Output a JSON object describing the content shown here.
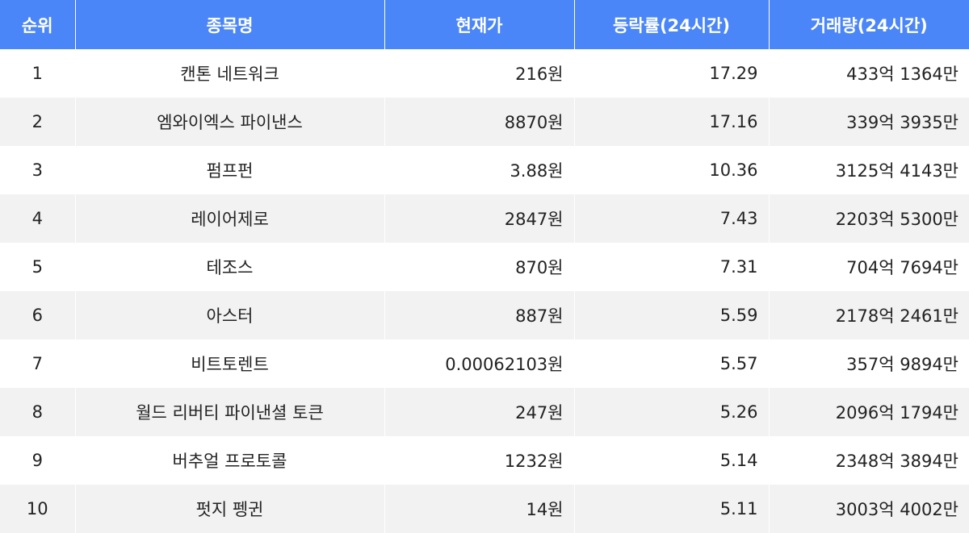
{
  "chart_data": {
    "type": "table",
    "columns": [
      "순위",
      "종목명",
      "현재가",
      "등락률(24시간)",
      "거래량(24시간)"
    ],
    "rows": [
      {
        "rank": "1",
        "name": "캔톤 네트워크",
        "price": "216원",
        "change": "17.29",
        "volume": "433억 1364만"
      },
      {
        "rank": "2",
        "name": "엠와이엑스 파이낸스",
        "price": "8870원",
        "change": "17.16",
        "volume": "339억 3935만"
      },
      {
        "rank": "3",
        "name": "펌프펀",
        "price": "3.88원",
        "change": "10.36",
        "volume": "3125억 4143만"
      },
      {
        "rank": "4",
        "name": "레이어제로",
        "price": "2847원",
        "change": "7.43",
        "volume": "2203억 5300만"
      },
      {
        "rank": "5",
        "name": "테조스",
        "price": "870원",
        "change": "7.31",
        "volume": "704억 7694만"
      },
      {
        "rank": "6",
        "name": "아스터",
        "price": "887원",
        "change": "5.59",
        "volume": "2178억 2461만"
      },
      {
        "rank": "7",
        "name": "비트토렌트",
        "price": "0.00062103원",
        "change": "5.57",
        "volume": "357억 9894만"
      },
      {
        "rank": "8",
        "name": "월드 리버티 파이낸셜 토큰",
        "price": "247원",
        "change": "5.26",
        "volume": "2096억 1794만"
      },
      {
        "rank": "9",
        "name": "버추얼 프로토콜",
        "price": "1232원",
        "change": "5.14",
        "volume": "2348억 3894만"
      },
      {
        "rank": "10",
        "name": "펏지 펭귄",
        "price": "14원",
        "change": "5.11",
        "volume": "3003억 4002만"
      }
    ]
  },
  "colors": {
    "header_bg": "#4a86f7",
    "header_text": "#ffffff",
    "stripe": "#f2f2f2"
  }
}
